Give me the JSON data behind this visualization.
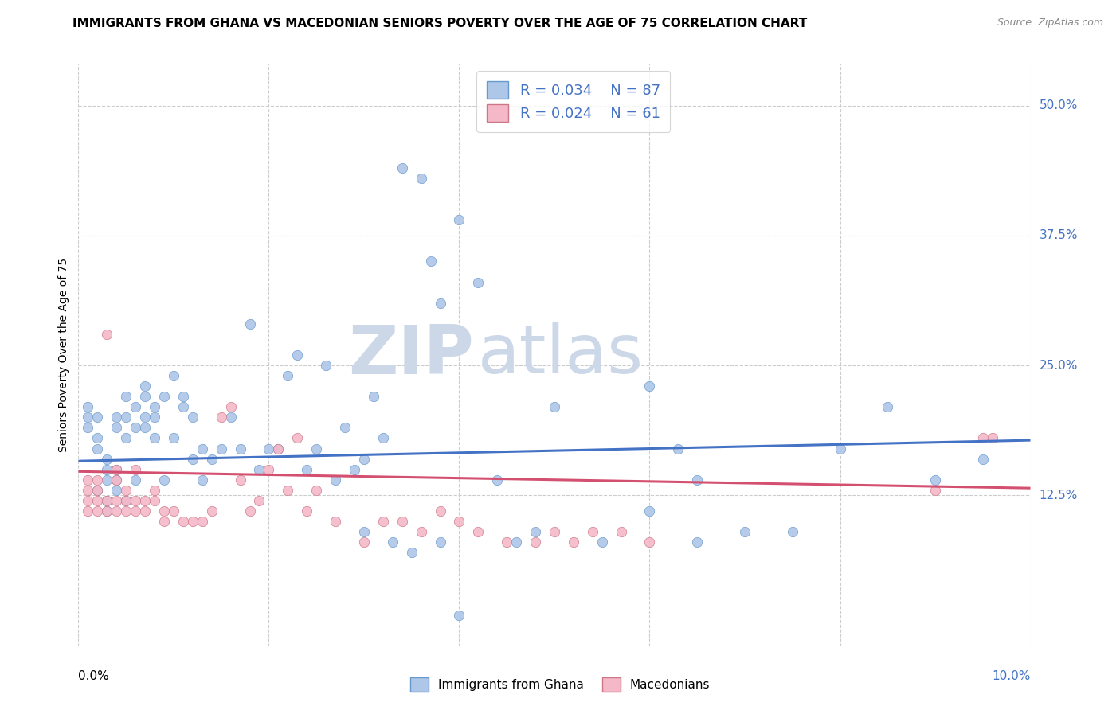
{
  "title": "IMMIGRANTS FROM GHANA VS MACEDONIAN SENIORS POVERTY OVER THE AGE OF 75 CORRELATION CHART",
  "source": "Source: ZipAtlas.com",
  "ylabel": "Seniors Poverty Over the Age of 75",
  "ytick_labels": [
    "12.5%",
    "25.0%",
    "37.5%",
    "50.0%"
  ],
  "ytick_values": [
    0.125,
    0.25,
    0.375,
    0.5
  ],
  "xlim": [
    0.0,
    0.1
  ],
  "ylim": [
    -0.02,
    0.54
  ],
  "ghana_color": "#aec6e8",
  "ghana_edge_color": "#6699cc",
  "macedonian_color": "#f4b8c8",
  "macedonian_edge_color": "#cc7788",
  "line_ghana_color": "#4472c4",
  "line_macedonian_color": "#d45070",
  "legend_label_ghana": "Immigrants from Ghana",
  "legend_label_macedonian": "Macedonians",
  "watermark_zip": "ZIP",
  "watermark_atlas": "atlas",
  "watermark_color": "#ccd8e8",
  "ghana_line_x": [
    0.0,
    0.1
  ],
  "ghana_line_y": [
    0.158,
    0.178
  ],
  "macedonian_line_x": [
    0.0,
    0.1
  ],
  "macedonian_line_y": [
    0.148,
    0.132
  ],
  "grid_color": "#cccccc",
  "title_fontsize": 11,
  "axis_label_fontsize": 10,
  "tick_fontsize": 11,
  "legend_fontsize": 13,
  "marker_size": 80,
  "ghana_x": [
    0.001,
    0.001,
    0.001,
    0.002,
    0.002,
    0.002,
    0.002,
    0.003,
    0.003,
    0.003,
    0.003,
    0.003,
    0.004,
    0.004,
    0.004,
    0.004,
    0.004,
    0.005,
    0.005,
    0.005,
    0.005,
    0.006,
    0.006,
    0.006,
    0.007,
    0.007,
    0.007,
    0.007,
    0.008,
    0.008,
    0.008,
    0.009,
    0.009,
    0.01,
    0.01,
    0.011,
    0.011,
    0.012,
    0.012,
    0.013,
    0.013,
    0.014,
    0.015,
    0.016,
    0.017,
    0.018,
    0.019,
    0.02,
    0.021,
    0.022,
    0.023,
    0.024,
    0.025,
    0.026,
    0.027,
    0.028,
    0.029,
    0.03,
    0.031,
    0.032,
    0.033,
    0.034,
    0.036,
    0.037,
    0.038,
    0.04,
    0.042,
    0.044,
    0.046,
    0.048,
    0.05,
    0.055,
    0.06,
    0.065,
    0.07,
    0.075,
    0.08,
    0.085,
    0.09,
    0.095,
    0.06,
    0.063,
    0.065,
    0.03,
    0.035,
    0.038,
    0.04
  ],
  "ghana_y": [
    0.19,
    0.2,
    0.21,
    0.17,
    0.18,
    0.2,
    0.13,
    0.14,
    0.15,
    0.16,
    0.12,
    0.11,
    0.15,
    0.14,
    0.19,
    0.2,
    0.13,
    0.18,
    0.2,
    0.22,
    0.12,
    0.19,
    0.21,
    0.14,
    0.2,
    0.19,
    0.22,
    0.23,
    0.2,
    0.21,
    0.18,
    0.22,
    0.14,
    0.24,
    0.18,
    0.22,
    0.21,
    0.2,
    0.16,
    0.17,
    0.14,
    0.16,
    0.17,
    0.2,
    0.17,
    0.29,
    0.15,
    0.17,
    0.17,
    0.24,
    0.26,
    0.15,
    0.17,
    0.25,
    0.14,
    0.19,
    0.15,
    0.16,
    0.22,
    0.18,
    0.08,
    0.44,
    0.43,
    0.35,
    0.31,
    0.39,
    0.33,
    0.14,
    0.08,
    0.09,
    0.21,
    0.08,
    0.11,
    0.14,
    0.09,
    0.09,
    0.17,
    0.21,
    0.14,
    0.16,
    0.23,
    0.17,
    0.08,
    0.09,
    0.07,
    0.08,
    0.01
  ],
  "macedonian_x": [
    0.001,
    0.001,
    0.001,
    0.001,
    0.002,
    0.002,
    0.002,
    0.002,
    0.003,
    0.003,
    0.003,
    0.004,
    0.004,
    0.004,
    0.004,
    0.005,
    0.005,
    0.005,
    0.006,
    0.006,
    0.006,
    0.007,
    0.007,
    0.008,
    0.008,
    0.009,
    0.009,
    0.01,
    0.011,
    0.012,
    0.013,
    0.014,
    0.015,
    0.016,
    0.017,
    0.018,
    0.019,
    0.02,
    0.021,
    0.022,
    0.023,
    0.024,
    0.025,
    0.027,
    0.03,
    0.032,
    0.034,
    0.036,
    0.038,
    0.04,
    0.042,
    0.045,
    0.048,
    0.05,
    0.052,
    0.054,
    0.057,
    0.06,
    0.09,
    0.095,
    0.096
  ],
  "macedonian_y": [
    0.11,
    0.12,
    0.13,
    0.14,
    0.12,
    0.13,
    0.11,
    0.14,
    0.12,
    0.28,
    0.11,
    0.15,
    0.12,
    0.11,
    0.14,
    0.13,
    0.12,
    0.11,
    0.12,
    0.11,
    0.15,
    0.12,
    0.11,
    0.13,
    0.12,
    0.11,
    0.1,
    0.11,
    0.1,
    0.1,
    0.1,
    0.11,
    0.2,
    0.21,
    0.14,
    0.11,
    0.12,
    0.15,
    0.17,
    0.13,
    0.18,
    0.11,
    0.13,
    0.1,
    0.08,
    0.1,
    0.1,
    0.09,
    0.11,
    0.1,
    0.09,
    0.08,
    0.08,
    0.09,
    0.08,
    0.09,
    0.09,
    0.08,
    0.13,
    0.18,
    0.18
  ]
}
